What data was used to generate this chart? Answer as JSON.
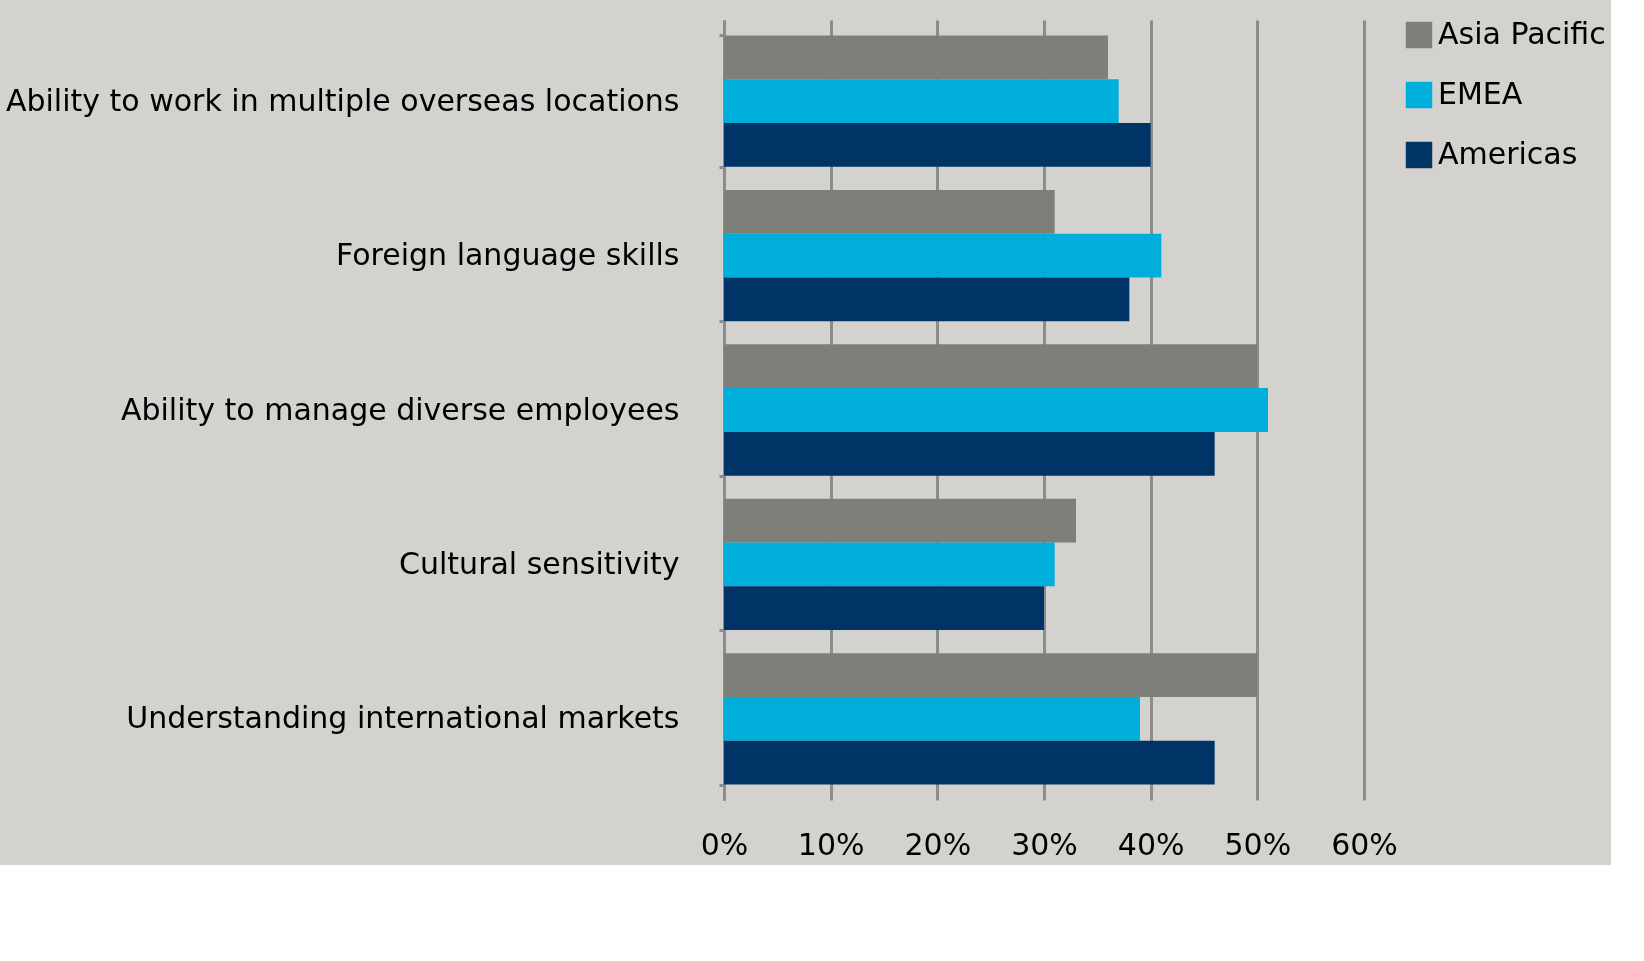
{
  "chart_data": {
    "type": "bar",
    "orientation": "horizontal",
    "categories": [
      "Ability to work in multiple overseas locations",
      "Foreign language skills",
      "Ability to manage diverse employees",
      "Cultural sensitivity",
      "Understanding international markets"
    ],
    "series": [
      {
        "name": "Asia Pacific",
        "color": "#7f7f7a",
        "values": [
          36,
          31,
          50,
          33,
          50
        ]
      },
      {
        "name": "EMEA",
        "color": "#00aedb",
        "values": [
          37,
          41,
          51,
          31,
          39
        ]
      },
      {
        "name": "Americas",
        "color": "#003366",
        "values": [
          40,
          38,
          46,
          30,
          46
        ]
      }
    ],
    "xlim": [
      0,
      60
    ],
    "xticks": [
      {
        "value": 0,
        "label": "0%"
      },
      {
        "value": 10,
        "label": "10%"
      },
      {
        "value": 20,
        "label": "20%"
      },
      {
        "value": 30,
        "label": "30%"
      },
      {
        "value": 40,
        "label": "40%"
      },
      {
        "value": 50,
        "label": "50%"
      },
      {
        "value": 60,
        "label": "60%"
      }
    ],
    "grid": "x",
    "legend": "right"
  }
}
